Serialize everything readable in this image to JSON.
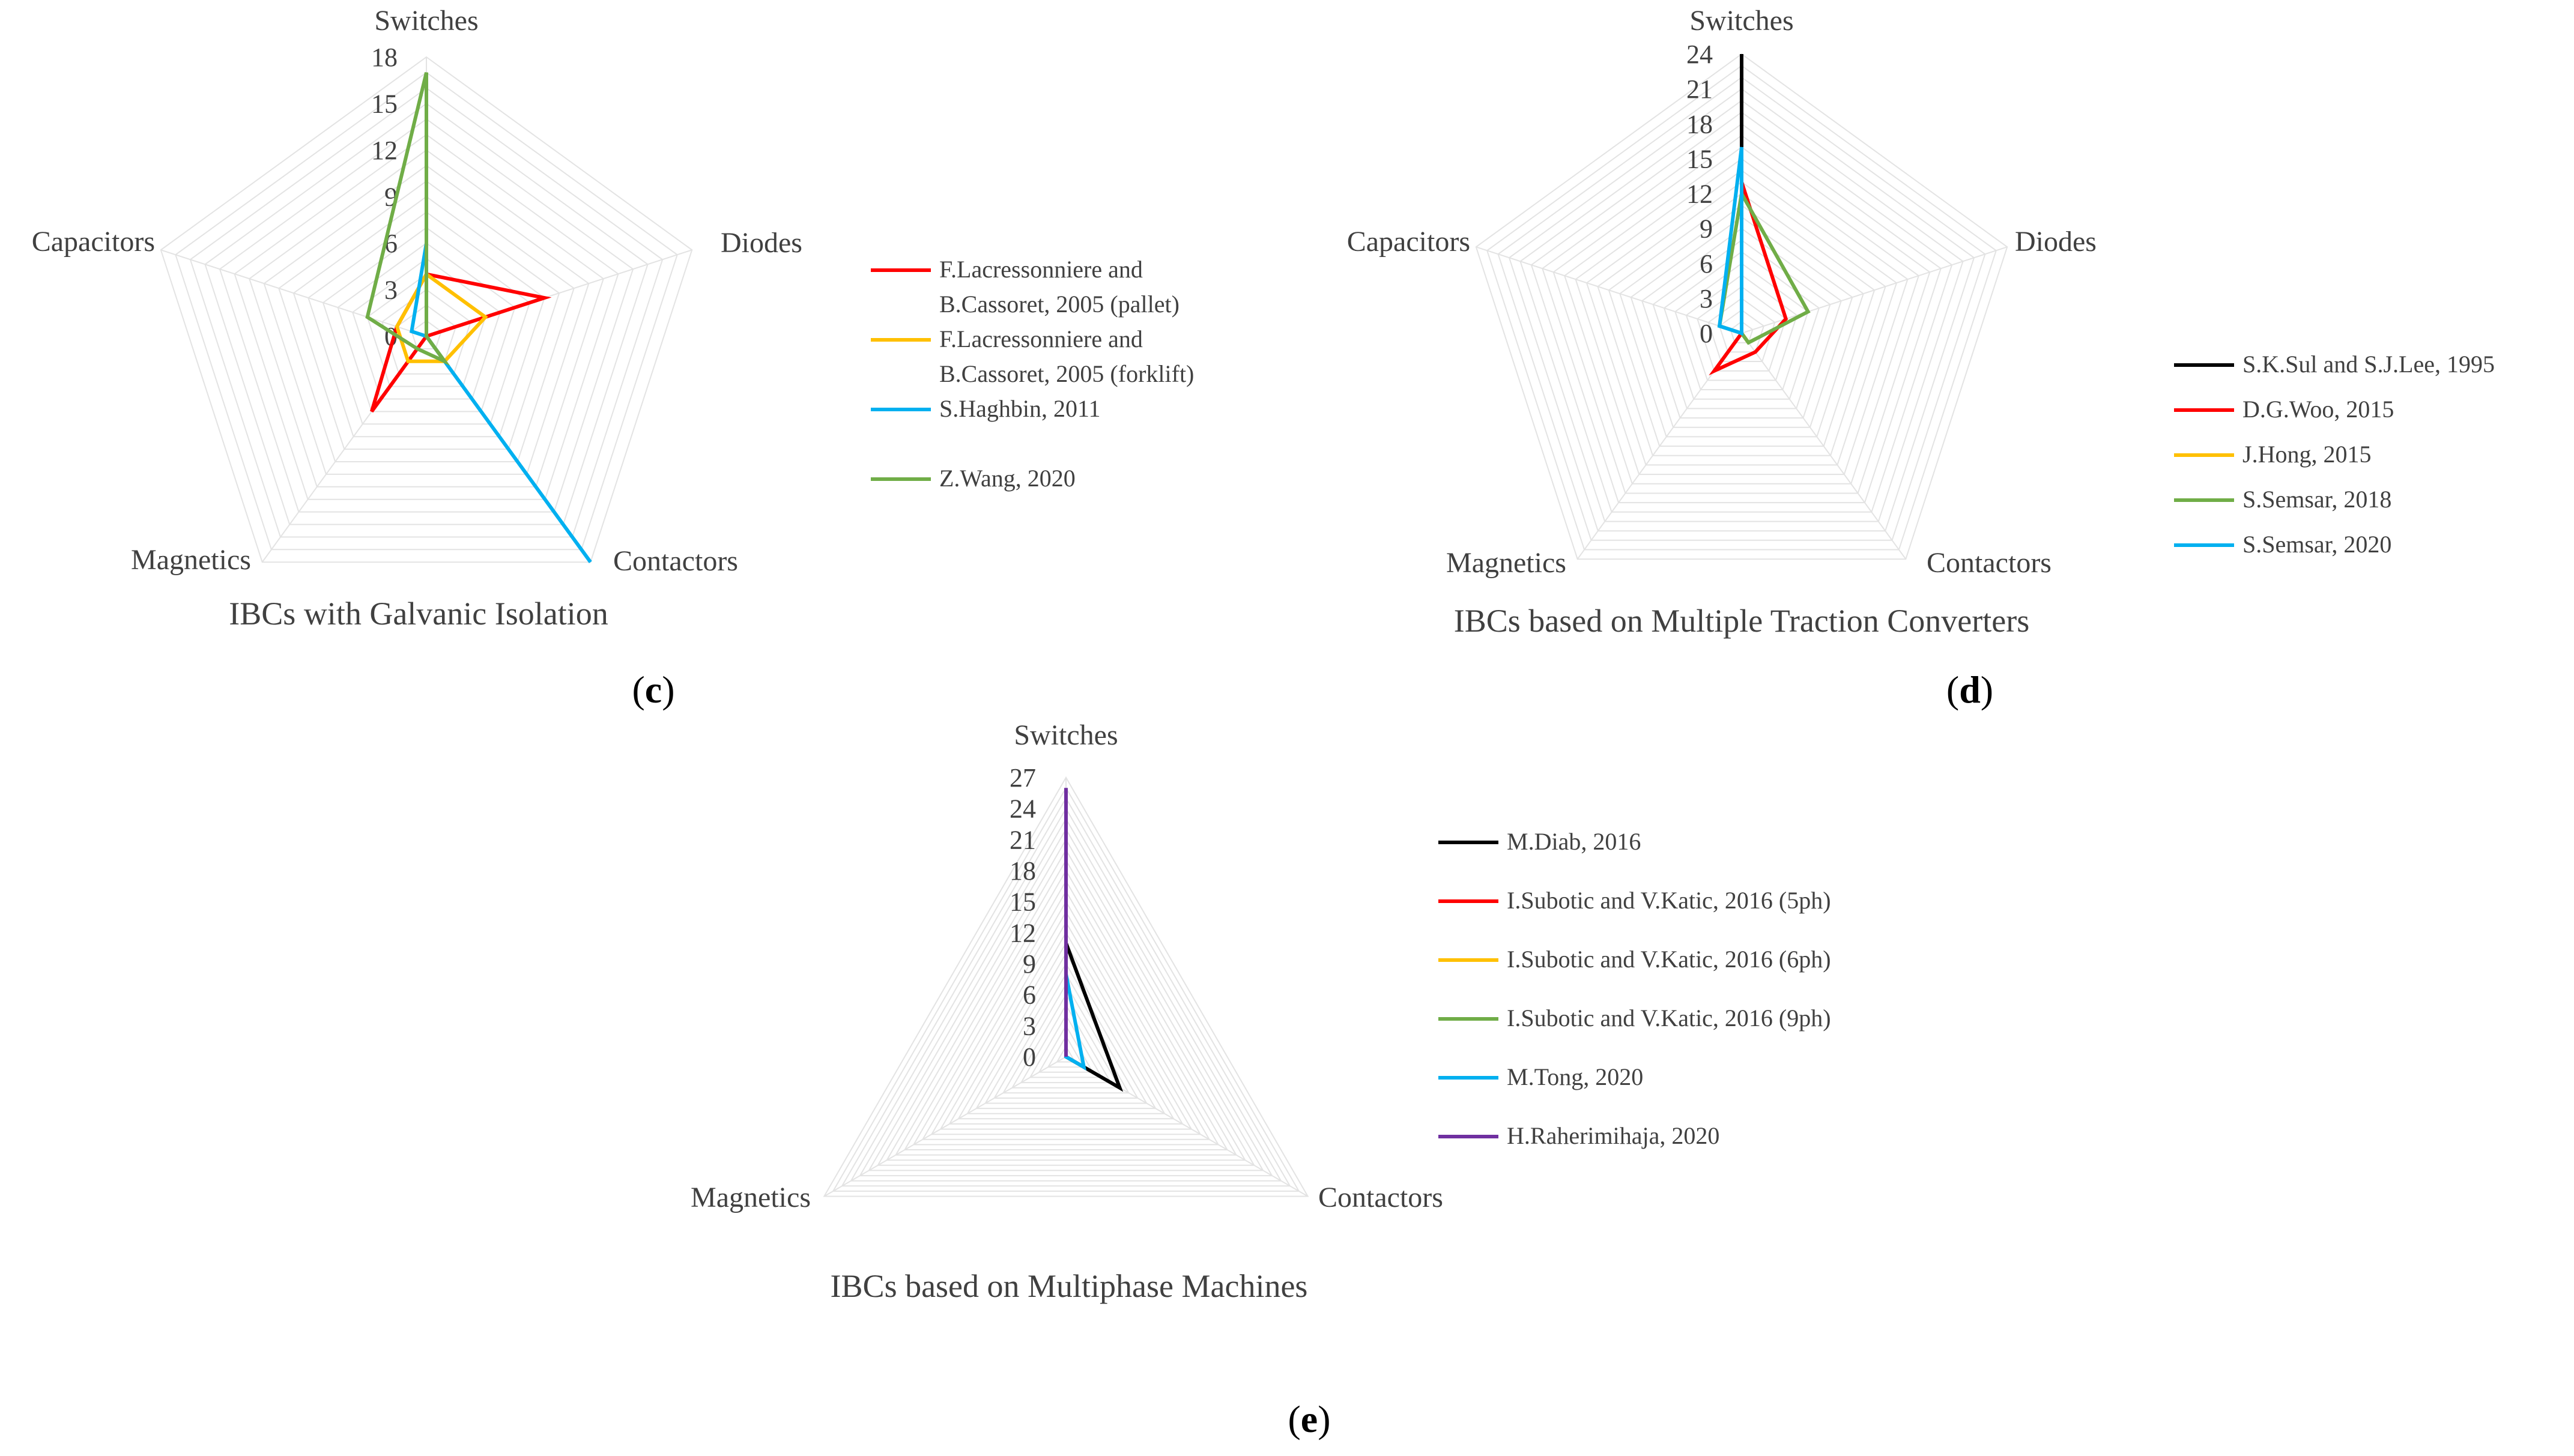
{
  "chart_data": [
    {
      "type": "radar",
      "panel": "c",
      "panel_open": "(",
      "panel_close": ")",
      "title": "IBCs with Galvanic Isolation",
      "axes": [
        "Switches",
        "Diodes",
        "Contactors",
        "Magnetics",
        "Capacitors"
      ],
      "ticks": [
        "0",
        "3",
        "6",
        "9",
        "12",
        "15",
        "18"
      ],
      "rlim": [
        0,
        18
      ],
      "series": [
        {
          "name": "F.Lacressonniere and B.Cassoret, 2005 (pallet)",
          "legend_lines": [
            "F.Lacressonniere and",
            "B.Cassoret, 2005 (pallet)"
          ],
          "color": "#ff0000",
          "values": [
            4,
            8,
            0,
            6,
            2
          ]
        },
        {
          "name": "F.Lacressonniere and B.Cassoret, 2005 (forklift)",
          "legend_lines": [
            "F.Lacressonniere and",
            "B.Cassoret, 2005 (forklift)"
          ],
          "color": "#ffc000",
          "values": [
            4,
            4,
            2,
            2,
            2
          ]
        },
        {
          "name": "S.Haghbin, 2011",
          "legend_lines": [
            "S.Haghbin, 2011"
          ],
          "color": "#00b0f0",
          "values": [
            6,
            0,
            18,
            0,
            1
          ]
        },
        {
          "name": "Z.Wang, 2020",
          "legend_lines": [
            "Z.Wang, 2020"
          ],
          "color": "#70ad47",
          "values": [
            17,
            0,
            2,
            1,
            4
          ]
        }
      ]
    },
    {
      "type": "radar",
      "panel": "d",
      "panel_open": "(",
      "panel_close": ")",
      "title": "IBCs based on Multiple Traction Converters",
      "axes": [
        "Switches",
        "Diodes",
        "Contactors",
        "Magnetics",
        "Capacitors"
      ],
      "ticks": [
        "0",
        "3",
        "6",
        "9",
        "12",
        "15",
        "18",
        "21",
        "24"
      ],
      "rlim": [
        0,
        24
      ],
      "series": [
        {
          "name": "S.K.Sul and S.J.Lee, 1995",
          "legend_lines": [
            "S.K.Sul and S.J.Lee, 1995"
          ],
          "color": "#000000",
          "values": [
            24,
            0,
            0,
            0,
            0
          ]
        },
        {
          "name": "D.G.Woo, 2015",
          "legend_lines": [
            "D.G.Woo, 2015"
          ],
          "color": "#ff0000",
          "values": [
            13,
            4,
            2,
            4,
            0
          ]
        },
        {
          "name": "J.Hong, 2015",
          "legend_lines": [
            "J.Hong, 2015"
          ],
          "color": "#ffc000",
          "values": [
            12,
            0,
            1,
            0,
            0
          ]
        },
        {
          "name": "S.Semsar, 2018",
          "legend_lines": [
            "S.Semsar, 2018"
          ],
          "color": "#70ad47",
          "values": [
            12,
            6,
            1,
            0,
            2
          ]
        },
        {
          "name": "S.Semsar, 2020",
          "legend_lines": [
            "S.Semsar, 2020"
          ],
          "color": "#00b0f0",
          "values": [
            16,
            0,
            0,
            0,
            2
          ]
        }
      ]
    },
    {
      "type": "radar",
      "panel": "e",
      "panel_open": "(",
      "panel_close": ")",
      "title": "IBCs based on Multiphase Machines",
      "axes": [
        "Switches",
        "Contactors",
        "Magnetics"
      ],
      "ticks": [
        "0",
        "3",
        "6",
        "9",
        "12",
        "15",
        "18",
        "21",
        "24",
        "27"
      ],
      "rlim": [
        0,
        27
      ],
      "series": [
        {
          "name": "M.Diab, 2016",
          "legend_lines": [
            "M.Diab, 2016"
          ],
          "color": "#000000",
          "values": [
            11,
            6,
            0
          ]
        },
        {
          "name": "I.Subotic and V.Katic, 2016 (5ph)",
          "legend_lines": [
            "I.Subotic and V.Katic, 2016 (5ph)"
          ],
          "color": "#ff0000",
          "values": [
            10,
            0,
            0
          ]
        },
        {
          "name": "I.Subotic and V.Katic, 2016 (6ph)",
          "legend_lines": [
            "I.Subotic and V.Katic, 2016 (6ph)"
          ],
          "color": "#ffc000",
          "values": [
            12,
            0,
            0
          ]
        },
        {
          "name": "I.Subotic and V.Katic, 2016 (9ph)",
          "legend_lines": [
            "I.Subotic and V.Katic, 2016 (9ph)"
          ],
          "color": "#70ad47",
          "values": [
            18,
            0,
            0
          ]
        },
        {
          "name": "M.Tong, 2020",
          "legend_lines": [
            "M.Tong, 2020"
          ],
          "color": "#00b0f0",
          "values": [
            8,
            2,
            0
          ]
        },
        {
          "name": "H.Raherimihaja, 2020",
          "legend_lines": [
            "H.Raherimihaja, 2020"
          ],
          "color": "#7030a0",
          "values": [
            26,
            0,
            0
          ]
        }
      ]
    }
  ]
}
